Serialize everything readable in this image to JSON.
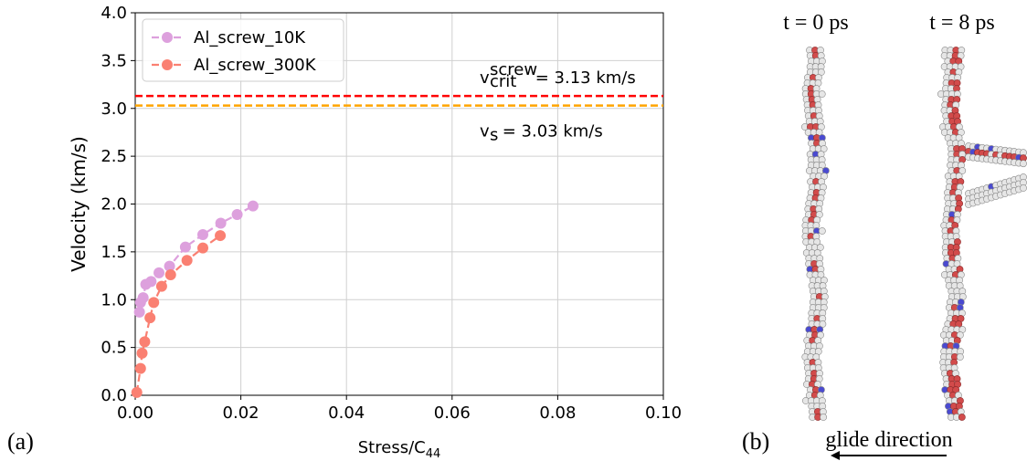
{
  "chart_data": {
    "type": "line",
    "xlabel": {
      "text": "Stress/C",
      "sub": "44"
    },
    "ylabel": "Velocity (km/s)",
    "xlim": [
      0,
      0.1
    ],
    "ylim": [
      0,
      4
    ],
    "xticks": [
      {
        "value": 0,
        "label": "0.00"
      },
      0.02,
      0.04,
      0.06,
      0.08,
      {
        "value": 0.1,
        "label": "0.10"
      }
    ],
    "yticks": [
      {
        "value": 0,
        "label": "0.0"
      },
      0.5,
      {
        "value": 1,
        "label": "1.0"
      },
      1.5,
      {
        "value": 2,
        "label": "2.0"
      },
      2.5,
      {
        "value": 3,
        "label": "3.0"
      },
      3.5,
      {
        "value": 4,
        "label": "4.0"
      }
    ],
    "grid": true,
    "legend": "upper left",
    "series": [
      {
        "name": "Al_screw_10K",
        "color": "#dda0dd",
        "x": [
          0.0008,
          0.001,
          0.0015,
          0.002,
          0.003,
          0.0045,
          0.0065,
          0.0095,
          0.0128,
          0.0162,
          0.0193,
          0.0223
        ],
        "values": [
          0.87,
          0.97,
          1.02,
          1.16,
          1.19,
          1.28,
          1.35,
          1.55,
          1.68,
          1.8,
          1.89,
          1.98
        ]
      },
      {
        "name": "Al_screw_300K",
        "color": "#fa8072",
        "x": [
          0.0003,
          0.001,
          0.0013,
          0.0018,
          0.0028,
          0.0035,
          0.005,
          0.0067,
          0.0098,
          0.0128,
          0.0161
        ],
        "values": [
          0.03,
          0.28,
          0.44,
          0.56,
          0.81,
          0.97,
          1.14,
          1.26,
          1.41,
          1.54,
          1.67
        ]
      }
    ],
    "hlines": [
      {
        "value": 3.13,
        "color": "#ff0000",
        "annotation": {
          "base": "v",
          "sup": "screw",
          "sub": "crit",
          "text": " = 3.13 km/s"
        }
      },
      {
        "value": 3.03,
        "color": "#ffa500",
        "annotation": {
          "base": "v",
          "sub": "s",
          "text": " = 3.03 km/s"
        }
      }
    ]
  },
  "panels": {
    "a": "(a)",
    "b": "(b)"
  },
  "snapshots": {
    "left": "t = 0 ps",
    "right": "t = 8 ps",
    "caption": "glide direction"
  }
}
